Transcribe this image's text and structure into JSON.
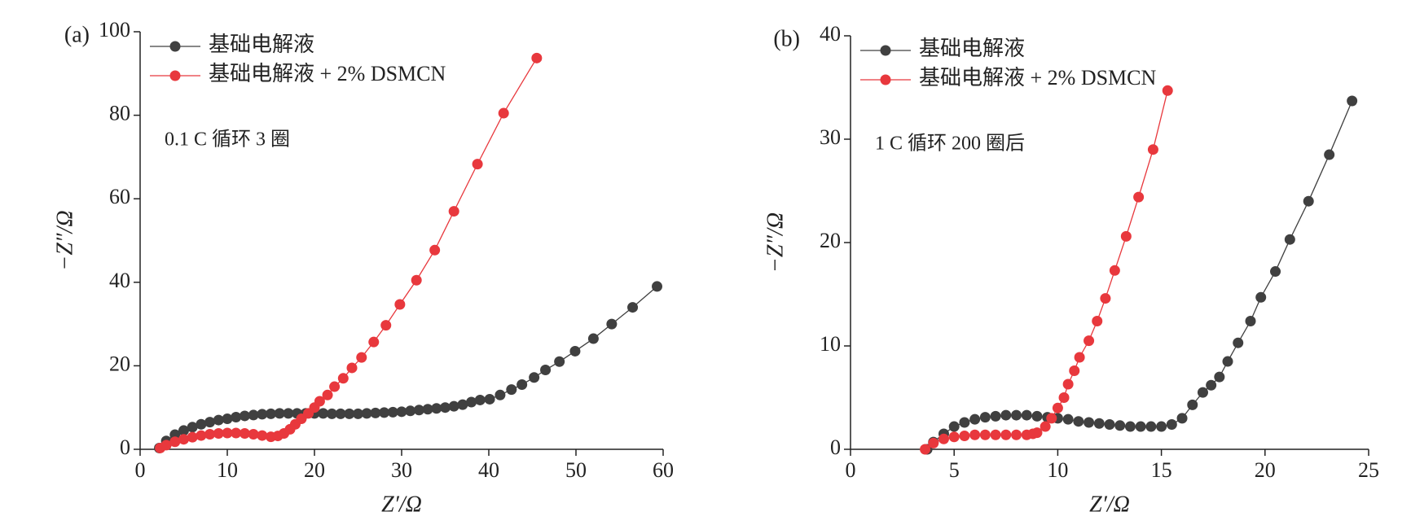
{
  "chart_data": [
    {
      "type": "line",
      "panel_label": "(a)",
      "annotation": "0.1 C 循环 3 圈",
      "x_label": "Z′/Ω",
      "y_label": "−Z″/Ω",
      "legend": "upper left",
      "xlim": [
        0,
        60
      ],
      "ylim": [
        0,
        100
      ],
      "xticks": [
        0,
        10,
        20,
        30,
        40,
        50,
        60
      ],
      "yticks": [
        0,
        20,
        40,
        60,
        80,
        100
      ],
      "series": [
        {
          "name": "基础电解液",
          "color": "#404040",
          "x": [
            2.2,
            3,
            4,
            5,
            6,
            7,
            8,
            9,
            10,
            11,
            12,
            13,
            14,
            15,
            16,
            17,
            18,
            19,
            20,
            21,
            22,
            23,
            24,
            25,
            26,
            27,
            28,
            29,
            30,
            31,
            32,
            33,
            34,
            35,
            36,
            37,
            38,
            39,
            40.1,
            41.3,
            42.6,
            43.8,
            45.2,
            46.5,
            48.1,
            49.9,
            52,
            54.1,
            56.5,
            59.3
          ],
          "values": [
            0.3,
            2,
            3.5,
            4.5,
            5.3,
            6,
            6.5,
            7,
            7.3,
            7.7,
            8,
            8.2,
            8.4,
            8.5,
            8.6,
            8.6,
            8.6,
            8.6,
            8.6,
            8.6,
            8.5,
            8.5,
            8.5,
            8.5,
            8.6,
            8.7,
            8.8,
            8.9,
            9,
            9.2,
            9.4,
            9.6,
            9.8,
            10,
            10.3,
            10.7,
            11.3,
            11.8,
            12,
            13,
            14.3,
            15.5,
            17.2,
            19,
            21,
            23.5,
            26.5,
            30,
            34,
            39
          ]
        },
        {
          "name": "基础电解液 + 2% DSMCN",
          "color": "#e8383d",
          "x": [
            2.3,
            3,
            4,
            5,
            6,
            7,
            8,
            9,
            10,
            11,
            12,
            13,
            14,
            15,
            15.8,
            16.5,
            17.2,
            17.8,
            18.5,
            19.3,
            20,
            20.6,
            21.5,
            22.3,
            23.3,
            24.3,
            25.4,
            26.8,
            28.2,
            29.8,
            31.7,
            33.8,
            36,
            38.7,
            41.7,
            45.5
          ],
          "values": [
            0.3,
            1,
            1.8,
            2.4,
            2.9,
            3.3,
            3.6,
            3.8,
            3.9,
            3.9,
            3.8,
            3.6,
            3.3,
            3,
            3.2,
            3.8,
            4.8,
            6,
            7.3,
            8.6,
            10,
            11.5,
            13,
            15,
            17,
            19.5,
            22,
            25.7,
            29.7,
            34.7,
            40.5,
            47.7,
            57,
            68.3,
            80.5,
            93.7
          ]
        }
      ]
    },
    {
      "type": "line",
      "panel_label": "(b)",
      "annotation": "1 C 循环 200 圈后",
      "x_label": "Z′/Ω",
      "y_label": "−Z″/Ω",
      "legend": "upper left",
      "xlim": [
        0,
        25
      ],
      "ylim": [
        0,
        40
      ],
      "xticks": [
        0,
        5,
        10,
        15,
        20,
        25
      ],
      "yticks": [
        0,
        10,
        20,
        30,
        40
      ],
      "series": [
        {
          "name": "基础电解液",
          "color": "#404040",
          "x": [
            3.7,
            4,
            4.5,
            5,
            5.5,
            6,
            6.5,
            7,
            7.5,
            8,
            8.5,
            9,
            9.5,
            10,
            10.5,
            11,
            11.5,
            12,
            12.5,
            13,
            13.5,
            14,
            14.5,
            15,
            15.5,
            16,
            16.5,
            17,
            17.4,
            17.8,
            18.2,
            18.7,
            19.3,
            19.8,
            20.5,
            21.2,
            22.1,
            23.1,
            24.2
          ],
          "values": [
            0,
            0.7,
            1.5,
            2.2,
            2.6,
            2.9,
            3.1,
            3.2,
            3.3,
            3.3,
            3.3,
            3.2,
            3.1,
            3,
            2.9,
            2.7,
            2.6,
            2.5,
            2.4,
            2.3,
            2.2,
            2.2,
            2.2,
            2.2,
            2.4,
            3,
            4.3,
            5.5,
            6.2,
            7,
            8.5,
            10.3,
            12.4,
            14.7,
            17.2,
            20.3,
            24,
            28.5,
            33.7
          ]
        },
        {
          "name": "基础电解液 + 2% DSMCN",
          "color": "#e8383d",
          "x": [
            3.6,
            4,
            4.5,
            5,
            5.5,
            6,
            6.5,
            7,
            7.5,
            8,
            8.5,
            8.8,
            9,
            9.4,
            9.7,
            10,
            10.3,
            10.5,
            10.8,
            11.05,
            11.5,
            11.9,
            12.3,
            12.75,
            13.3,
            13.9,
            14.6,
            15.3
          ],
          "values": [
            0,
            0.6,
            1,
            1.2,
            1.3,
            1.4,
            1.4,
            1.4,
            1.4,
            1.4,
            1.4,
            1.5,
            1.6,
            2.2,
            3,
            4,
            5,
            6.3,
            7.6,
            8.9,
            10.5,
            12.4,
            14.6,
            17.3,
            20.6,
            24.4,
            29,
            34.7
          ]
        }
      ]
    }
  ]
}
